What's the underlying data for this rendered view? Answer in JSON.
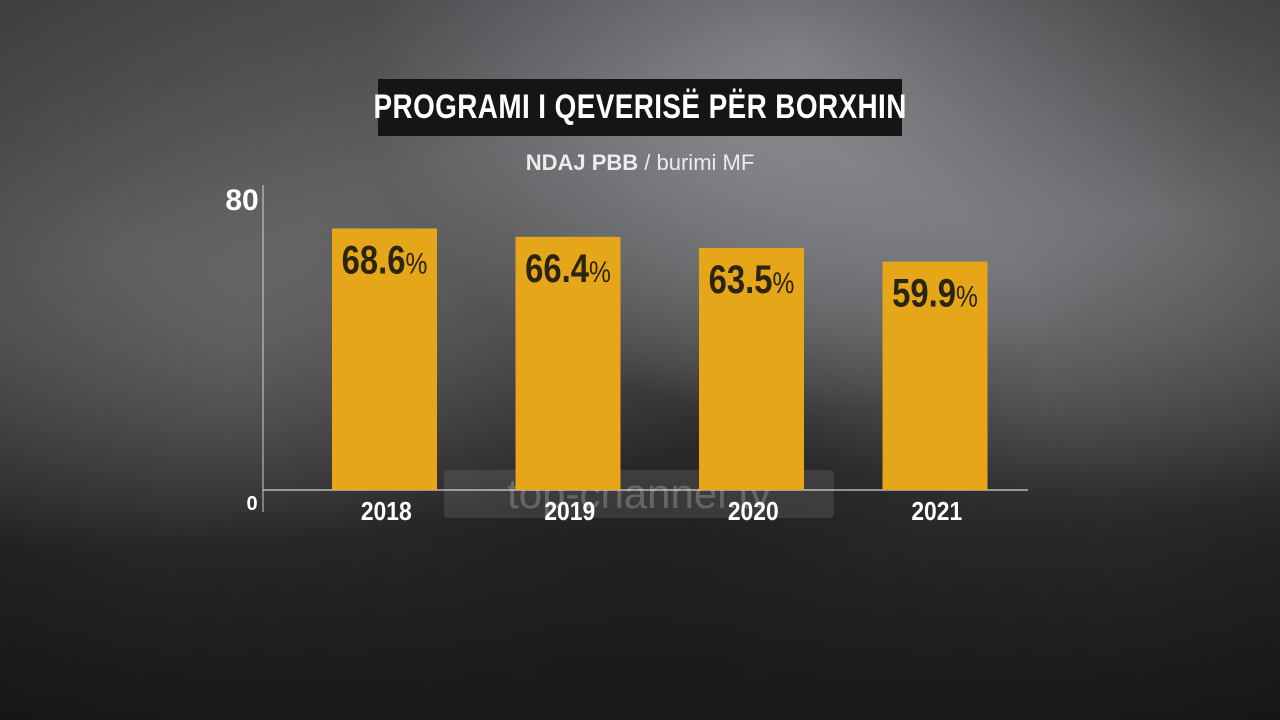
{
  "title": "PROGRAMI I QEVERISË PËR BORXHIN",
  "subtitle_strong": "NDAJ PBB",
  "subtitle_rest": " / burimi MF",
  "watermark": "top-channel.tv",
  "colors": {
    "bar": "#e6a619",
    "label": "#2b2410",
    "title_bg": "#151515",
    "axis": "#e8e8e8"
  },
  "chart_data": {
    "type": "bar",
    "categories": [
      "2018",
      "2019",
      "2020",
      "2021"
    ],
    "values": [
      68.6,
      66.4,
      63.5,
      59.9
    ],
    "value_labels": [
      "68.6",
      "66.4",
      "63.5",
      "59.9"
    ],
    "value_suffix": "%",
    "title": "PROGRAMI I QEVERISË PËR BORXHIN",
    "subtitle": "NDAJ PBB / burimi MF",
    "xlabel": "",
    "ylabel": "",
    "ylim": [
      0,
      80
    ],
    "y_ticks": [
      "0",
      "80"
    ],
    "grid": false,
    "legend": "none"
  }
}
